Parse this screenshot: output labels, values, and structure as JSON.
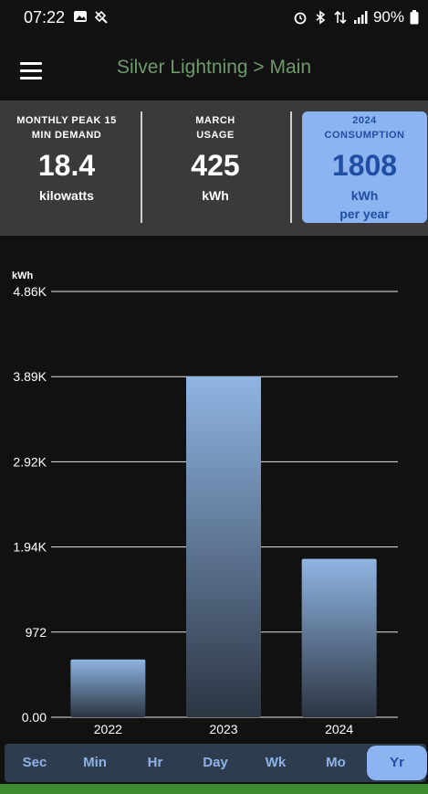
{
  "status_bar": {
    "time": "07:22",
    "battery_percent": "90%",
    "icons_left": [
      "image-icon",
      "flashlight-icon"
    ],
    "icons_right": [
      "alarm-icon",
      "bluetooth-icon",
      "data-transfer-icon",
      "signal-icon",
      "battery-icon"
    ]
  },
  "app_bar": {
    "title": "Silver Lightning > Main"
  },
  "summary": {
    "cards": [
      {
        "label_line1": "MONTHLY PEAK 15",
        "label_line2": "MIN DEMAND",
        "value": "18.4",
        "unit": "kilowatts",
        "unit2": ""
      },
      {
        "label_line1": "MARCH",
        "label_line2": "USAGE",
        "value": "425",
        "unit": "kWh",
        "unit2": ""
      },
      {
        "label_line1": "2024",
        "label_line2": "CONSUMPTION",
        "value": "1808",
        "unit": "kWh",
        "unit2": "per year"
      }
    ]
  },
  "colors": {
    "accent": "#8cb4f0",
    "accent_text": "#1f4ea3",
    "title_green": "#6f9a6b",
    "panel": "#3a3a3c",
    "tabbar": "#2d3c4e"
  },
  "chart_data": {
    "type": "bar",
    "ylabel": "kWh",
    "categories": [
      "2022",
      "2023",
      "2024"
    ],
    "values": [
      660,
      3890,
      1808
    ],
    "ylim": [
      0,
      4860
    ],
    "yticks": [
      0,
      972,
      1944,
      2916,
      3888,
      4860
    ],
    "ytick_labels": [
      "0.00",
      "972",
      "1.94K",
      "2.92K",
      "3.89K",
      "4.86K"
    ],
    "grid": true
  },
  "tabs": {
    "items": [
      "Sec",
      "Min",
      "Hr",
      "Day",
      "Wk",
      "Mo",
      "Yr"
    ],
    "selected": "Yr"
  }
}
